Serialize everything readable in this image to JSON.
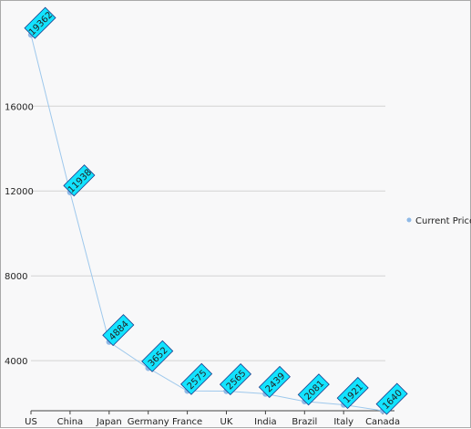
{
  "chart_data": {
    "type": "line",
    "categories": [
      "US",
      "China",
      "Japan",
      "Germany",
      "France",
      "UK",
      "India",
      "Brazil",
      "Italy",
      "Canada"
    ],
    "series": [
      {
        "name": "Current Prices",
        "values": [
          19362,
          11938,
          4884,
          3652,
          2575,
          2565,
          2439,
          2081,
          1921,
          1640
        ]
      }
    ],
    "data_labels": [
      "19362",
      "11938",
      "4884",
      "3652",
      "2575",
      "2565",
      "2439",
      "2081",
      "1921",
      "1640"
    ],
    "ytick_labels": [
      "4000",
      "8000",
      "12000",
      "16000"
    ],
    "yticks": [
      4000,
      8000,
      12000,
      16000
    ],
    "ylim": [
      1640,
      20100
    ],
    "grid": true,
    "legend_position": "right",
    "colors": {
      "line": "#9ec8ec",
      "marker": "#8fb9e6",
      "label_fill": "#13e3ff",
      "label_stroke": "#1a3a8a",
      "grid": "#d3d3d3",
      "axis": "#444444"
    }
  }
}
